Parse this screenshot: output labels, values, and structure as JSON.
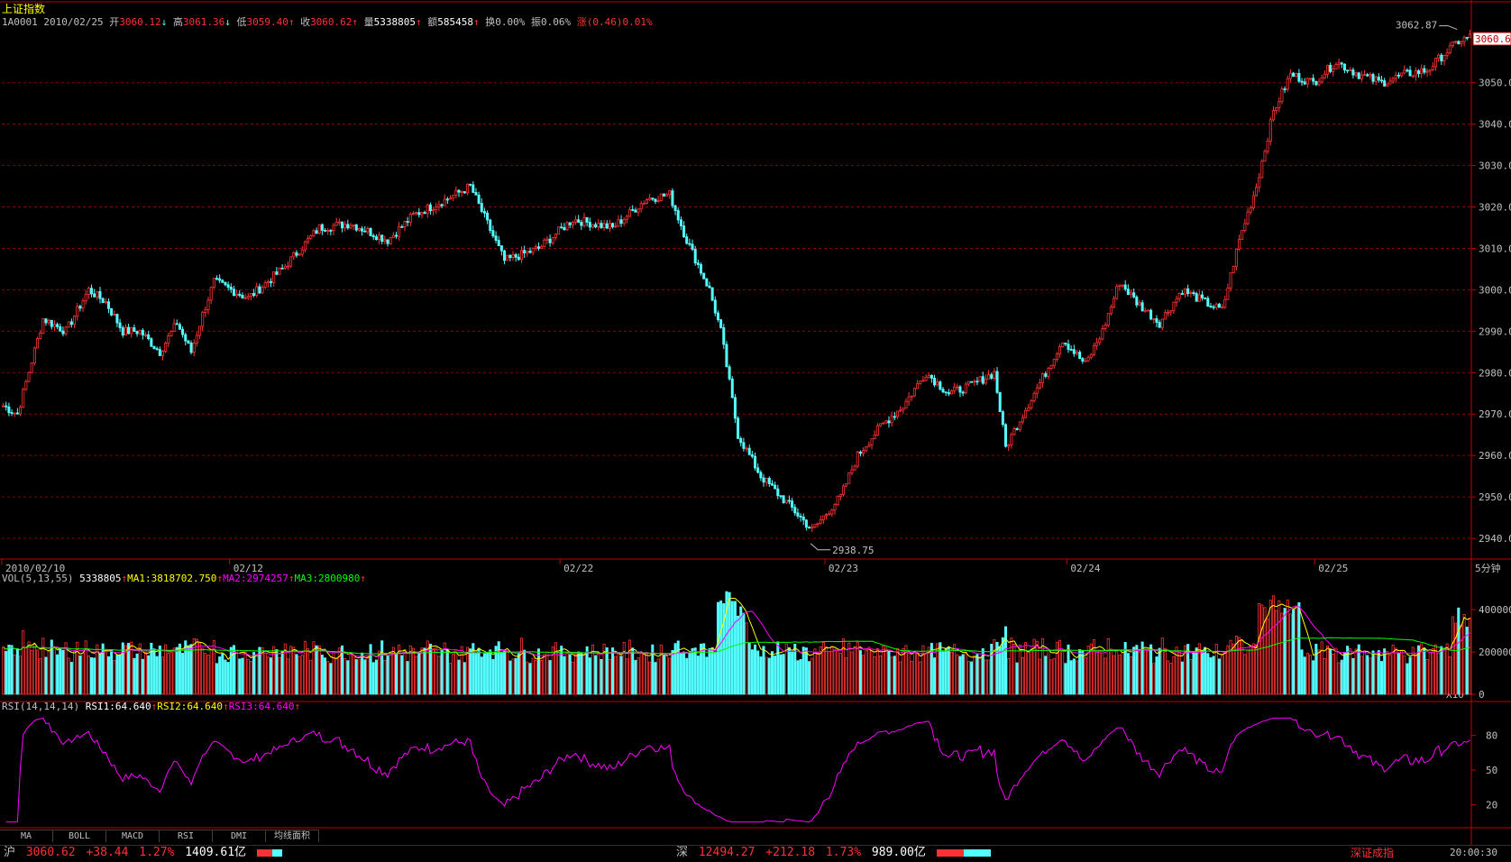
{
  "header": {
    "title": "上证指数",
    "code": "1A0001",
    "date": "2010/02/25",
    "open_label": "开",
    "open": "3060.12",
    "high_label": "高",
    "high": "3061.36",
    "low_label": "低",
    "low": "3059.40",
    "close_label": "收",
    "close": "3060.62",
    "vol_label": "量",
    "vol": "5338805",
    "amt_label": "额",
    "amt": "585458",
    "turn_label": "换",
    "turn": "0.00%",
    "amp_label": "振",
    "amp": "0.06%",
    "chg_label": "涨",
    "chg": "(0.46)0.01%",
    "arrow_up": "↑",
    "arrow_down": "↓"
  },
  "price_panel": {
    "y_ticks": [
      "3050.0",
      "3040.0",
      "3030.0",
      "3020.0",
      "3010.0",
      "3000.0",
      "2990.0",
      "2980.0",
      "2970.0",
      "2960.0",
      "2950.0",
      "2940.0"
    ],
    "current_tag": "3060.6",
    "max_label": "3062.87",
    "min_label": "2938.75",
    "date_labels": [
      "2010/02/10",
      "02/12",
      "02/22",
      "02/23",
      "02/24",
      "02/25"
    ],
    "period": "5分钟"
  },
  "vol_panel": {
    "legend": "VOL(5,13,55)",
    "value": "5338805",
    "ma1": "MA1:3818702.750",
    "ma2": "MA2:2974257",
    "ma3": "MA3:2800980",
    "y_ticks": [
      "400000",
      "200000",
      "0"
    ],
    "scale": "X10"
  },
  "rsi_panel": {
    "legend": "RSI(14,14,14)",
    "rsi1": "RSI1:64.640",
    "rsi2": "RSI2:64.640",
    "rsi3": "RSI3:64.640",
    "y_ticks": [
      "80",
      "50",
      "20"
    ]
  },
  "tabs": [
    "MA",
    "BOLL",
    "MACD",
    "RSI",
    "DMI",
    "均线面积"
  ],
  "status_bar": {
    "sh_label": "沪",
    "sh_value": "3060.62",
    "sh_change": "+38.44",
    "sh_pct": "1.27%",
    "sh_amount": "1409.61亿",
    "sz_label": "深",
    "sz_value": "12494.27",
    "sz_change": "+212.18",
    "sz_pct": "1.73%",
    "sz_amount": "989.00亿",
    "right_label": "深证成指",
    "time": "20:00:30"
  },
  "colors": {
    "up": "#ff3232",
    "down": "#54ffff",
    "grid": "#8b0000",
    "ma1": "#ffff00",
    "ma2": "#ff00ff",
    "ma3": "#00ff00",
    "rsi": "#ff00ff"
  },
  "chart_data": {
    "type": "candlestick",
    "title": "上证指数",
    "period": "5分钟",
    "ylim": [
      2935,
      3063
    ],
    "anchors": [
      [
        0,
        2972
      ],
      [
        5,
        2970
      ],
      [
        14,
        2993
      ],
      [
        22,
        2990
      ],
      [
        30,
        3000
      ],
      [
        36,
        2997
      ],
      [
        42,
        2990
      ],
      [
        48,
        2990
      ],
      [
        55,
        2985
      ],
      [
        61,
        2992
      ],
      [
        66,
        2985
      ],
      [
        70,
        2994
      ],
      [
        74,
        3002
      ],
      [
        86,
        2998
      ],
      [
        98,
        3005
      ],
      [
        111,
        3015
      ],
      [
        122,
        3016
      ],
      [
        135,
        3012
      ],
      [
        144,
        3018
      ],
      [
        156,
        3022
      ],
      [
        164,
        3025
      ],
      [
        176,
        3007
      ],
      [
        188,
        3010
      ],
      [
        200,
        3017
      ],
      [
        214,
        3015
      ],
      [
        226,
        3022
      ],
      [
        234,
        3023
      ],
      [
        240,
        3012
      ],
      [
        248,
        3000
      ],
      [
        252,
        2990
      ],
      [
        258,
        2965
      ],
      [
        266,
        2955
      ],
      [
        276,
        2948
      ],
      [
        284,
        2942
      ],
      [
        294,
        2950
      ],
      [
        300,
        2960
      ],
      [
        308,
        2967
      ],
      [
        316,
        2972
      ],
      [
        324,
        2980
      ],
      [
        332,
        2975
      ],
      [
        340,
        2977
      ],
      [
        348,
        2980
      ],
      [
        352,
        2962
      ],
      [
        358,
        2970
      ],
      [
        366,
        2980
      ],
      [
        372,
        2988
      ],
      [
        380,
        2982
      ],
      [
        386,
        2990
      ],
      [
        392,
        3002
      ],
      [
        398,
        2997
      ],
      [
        406,
        2992
      ],
      [
        414,
        3000
      ],
      [
        422,
        2997
      ],
      [
        428,
        2995
      ],
      [
        434,
        3012
      ],
      [
        440,
        3025
      ],
      [
        446,
        3043
      ],
      [
        452,
        3052
      ],
      [
        460,
        3050
      ],
      [
        468,
        3055
      ],
      [
        476,
        3052
      ],
      [
        484,
        3050
      ],
      [
        492,
        3052
      ],
      [
        500,
        3053
      ],
      [
        506,
        3057
      ],
      [
        511,
        3060
      ],
      [
        515,
        3061
      ]
    ],
    "count": 516
  }
}
